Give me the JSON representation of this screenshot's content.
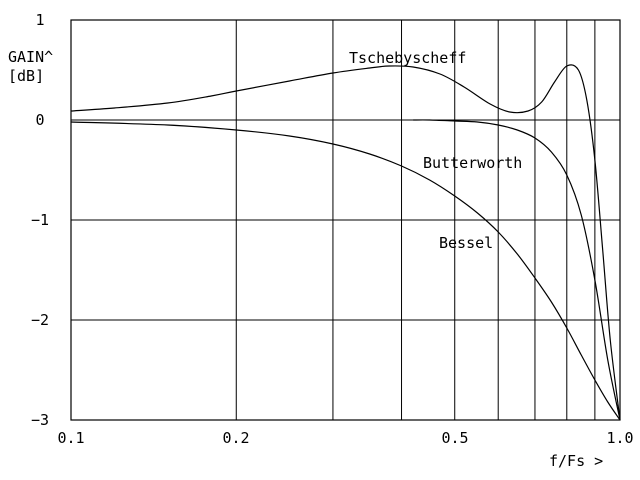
{
  "chart_data": {
    "type": "line",
    "xlabel": "f/Fs >",
    "ylabel": [
      "GAIN^",
      "[dB]"
    ],
    "xscale": "log",
    "xlim": [
      0.1,
      1.0
    ],
    "ylim": [
      -3,
      1
    ],
    "grid": true,
    "x_gridlines": [
      0.1,
      0.2,
      0.3,
      0.4,
      0.5,
      0.6,
      0.7,
      0.8,
      0.9,
      1.0
    ],
    "y_gridlines": [
      -3,
      -2,
      -1,
      0,
      1
    ],
    "x_ticks": [
      {
        "value": 0.1,
        "label": "0.1"
      },
      {
        "value": 0.2,
        "label": "0.2"
      },
      {
        "value": 0.5,
        "label": "0.5"
      },
      {
        "value": 1.0,
        "label": "1.0"
      }
    ],
    "y_ticks": [
      {
        "value": 1,
        "label": "1"
      },
      {
        "value": 0,
        "label": "0"
      },
      {
        "value": -1,
        "label": "−1"
      },
      {
        "value": -2,
        "label": "−2"
      },
      {
        "value": -3,
        "label": "−3"
      }
    ],
    "line_color": "#000000",
    "series": [
      {
        "name": "Tschebyscheff",
        "x": [
          0.1,
          0.12,
          0.15,
          0.18,
          0.2,
          0.25,
          0.3,
          0.35,
          0.38,
          0.42,
          0.47,
          0.52,
          0.58,
          0.63,
          0.68,
          0.72,
          0.76,
          0.8,
          0.84,
          0.87,
          0.9,
          0.93,
          0.96,
          1.0
        ],
        "y": [
          0.09,
          0.12,
          0.17,
          0.24,
          0.29,
          0.39,
          0.47,
          0.52,
          0.54,
          0.53,
          0.46,
          0.33,
          0.16,
          0.08,
          0.09,
          0.18,
          0.38,
          0.54,
          0.5,
          0.2,
          -0.4,
          -1.3,
          -2.2,
          -3.0
        ]
      },
      {
        "name": "Butterworth",
        "x": [
          0.42,
          0.45,
          0.5,
          0.55,
          0.6,
          0.65,
          0.7,
          0.75,
          0.8,
          0.85,
          0.9,
          0.95,
          1.0
        ],
        "y": [
          0.0,
          0.0,
          -0.01,
          -0.02,
          -0.05,
          -0.1,
          -0.18,
          -0.32,
          -0.55,
          -0.95,
          -1.6,
          -2.4,
          -3.0
        ]
      },
      {
        "name": "Bessel",
        "x": [
          0.1,
          0.15,
          0.2,
          0.25,
          0.3,
          0.35,
          0.4,
          0.45,
          0.5,
          0.55,
          0.6,
          0.65,
          0.7,
          0.75,
          0.8,
          0.85,
          0.9,
          0.95,
          1.0
        ],
        "y": [
          -0.02,
          -0.05,
          -0.1,
          -0.16,
          -0.24,
          -0.34,
          -0.46,
          -0.6,
          -0.76,
          -0.93,
          -1.12,
          -1.34,
          -1.58,
          -1.82,
          -2.08,
          -2.35,
          -2.6,
          -2.82,
          -3.0
        ]
      }
    ]
  }
}
